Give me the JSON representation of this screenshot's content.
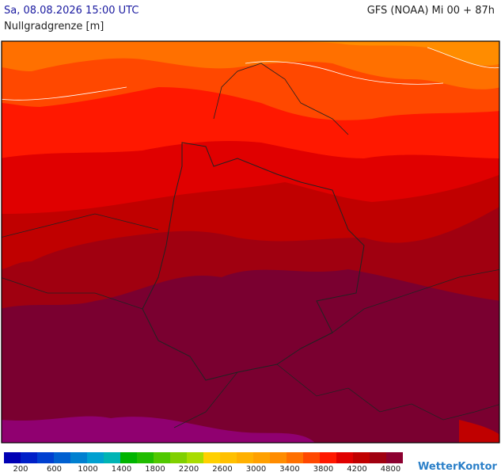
{
  "header": {
    "datetime": "Sa, 08.08.2026 15:00 UTC",
    "model": "GFS (NOAA) Mi 00 + 87h",
    "parameter": "Nullgradgrenze [m]"
  },
  "legend": {
    "colors": [
      "#0000b4",
      "#0020c8",
      "#0040d0",
      "#0060d0",
      "#0080d0",
      "#00a0d0",
      "#00b4b4",
      "#00b400",
      "#20bc00",
      "#50c800",
      "#80d000",
      "#a8dc00",
      "#ffd000",
      "#ffc000",
      "#ffb000",
      "#ffa000",
      "#ff8c00",
      "#ff7000",
      "#ff4800",
      "#ff1800",
      "#e00000",
      "#c00000",
      "#a00010",
      "#8c0030",
      "#900070",
      "#a000a0"
    ],
    "labels": [
      "200",
      "600",
      "1000",
      "1400",
      "1800",
      "2200",
      "2600",
      "3000",
      "3400",
      "3800",
      "4200",
      "4800"
    ]
  },
  "brand": "WetterKontor"
}
